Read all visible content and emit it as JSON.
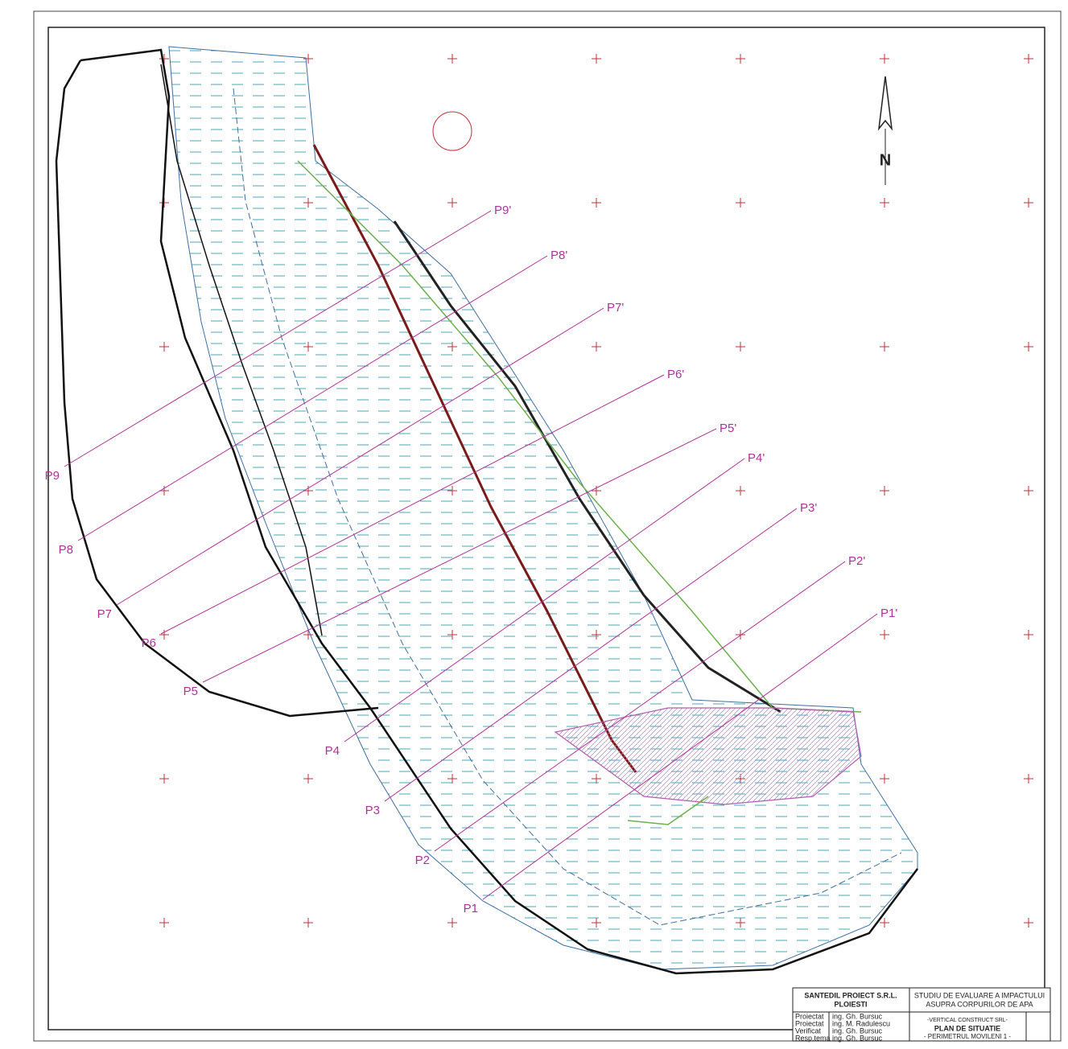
{
  "north_arrow": "N",
  "profiles": [
    {
      "start": "P1",
      "end": "P1'"
    },
    {
      "start": "P2",
      "end": "P2'"
    },
    {
      "start": "P3",
      "end": "P3'"
    },
    {
      "start": "P4",
      "end": "P4'"
    },
    {
      "start": "P5",
      "end": "P5'"
    },
    {
      "start": "P6",
      "end": "P6'"
    },
    {
      "start": "P7",
      "end": "P7'"
    },
    {
      "start": "P8",
      "end": "P8'"
    },
    {
      "start": "P9",
      "end": "P9'"
    }
  ],
  "title_block": {
    "company": "SANTEDIL PROIECT S.R.L.",
    "city": "PLOIESTI",
    "study_line1": "STUDIU DE EVALUARE A IMPACTULUI",
    "study_line2": "ASUPRA CORPURILOR DE APA",
    "rows": [
      [
        "Proiectat",
        "ing. Gh. Bursuc"
      ],
      [
        "Proiectat",
        "ing. M. Radulescu"
      ],
      [
        "Verificat",
        "ing. Gh. Bursuc"
      ],
      [
        "Resp.tema",
        "ing. Gh. Bursuc"
      ]
    ],
    "client": "-VERTICAL CONSTRUCT SRL-",
    "drawing_title": "PLAN DE SITUATIE",
    "drawing_subtitle": "- PERIMETRUL MOVILENI 1 -"
  }
}
